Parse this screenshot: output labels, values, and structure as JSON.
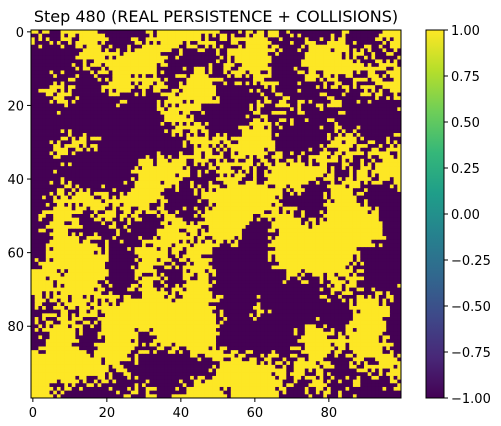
{
  "chart_data": {
    "type": "heatmap",
    "title": "Step 480 (REAL PERSISTENCE + COLLISIONS)",
    "grid_size": [
      100,
      100
    ],
    "xlim": [
      -0.5,
      99.5
    ],
    "ylim": [
      99.5,
      -0.5
    ],
    "x_ticks": [
      0,
      20,
      40,
      60,
      80
    ],
    "y_ticks": [
      0,
      20,
      40,
      60,
      80
    ],
    "x_tick_labels": [
      "0",
      "20",
      "40",
      "60",
      "80"
    ],
    "y_tick_labels": [
      "0",
      "20",
      "40",
      "60",
      "80"
    ],
    "values": [
      -1,
      1
    ],
    "value_distribution": "random binary spin field (approx. 50% +1, 50% -1) with coarse domains",
    "colormap": "viridis",
    "colormap_colors": {
      "low": "#440154",
      "high": "#fde725",
      "stops": [
        "#440154",
        "#482878",
        "#3e4989",
        "#31688e",
        "#26828e",
        "#1f9e89",
        "#35b779",
        "#6ece58",
        "#b5de2b",
        "#fde725"
      ]
    },
    "colorbar": {
      "range": [
        -1.0,
        1.0
      ],
      "ticks": [
        1.0,
        0.75,
        0.5,
        0.25,
        0.0,
        -0.25,
        -0.5,
        -0.75,
        -1.0
      ],
      "tick_labels": [
        "1.00",
        "0.75",
        "0.50",
        "0.25",
        "0.00",
        "−0.25",
        "−0.50",
        "−0.75",
        "−1.00"
      ]
    }
  }
}
